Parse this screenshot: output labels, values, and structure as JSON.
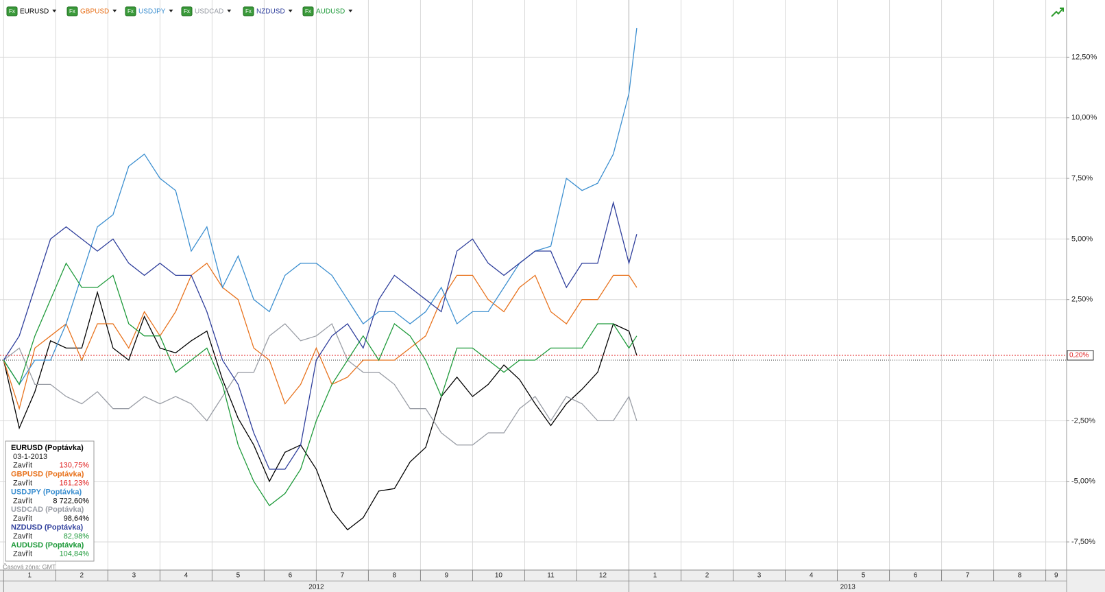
{
  "chart_data": {
    "type": "line",
    "toolbar_icon": "Fx",
    "x": [
      0,
      0.3,
      0.6,
      0.9,
      1.2,
      1.5,
      1.8,
      2.1,
      2.4,
      2.7,
      3.0,
      3.3,
      3.6,
      3.9,
      4.2,
      4.5,
      4.8,
      5.1,
      5.4,
      5.7,
      6.0,
      6.3,
      6.6,
      6.9,
      7.2,
      7.5,
      7.8,
      8.1,
      8.4,
      8.7,
      9.0,
      9.3,
      9.6,
      9.9,
      10.2,
      10.5,
      10.8,
      11.1,
      11.4,
      11.7,
      12.0,
      12.15
    ],
    "xlim": [
      -0.07,
      20.4
    ],
    "xticks": [
      {
        "value": 0,
        "label": "1"
      },
      {
        "value": 1,
        "label": "2"
      },
      {
        "value": 2,
        "label": "3"
      },
      {
        "value": 3,
        "label": "4"
      },
      {
        "value": 4,
        "label": "5"
      },
      {
        "value": 5,
        "label": "6"
      },
      {
        "value": 6,
        "label": "7"
      },
      {
        "value": 7,
        "label": "8"
      },
      {
        "value": 8,
        "label": "9"
      },
      {
        "value": 9,
        "label": "10"
      },
      {
        "value": 10,
        "label": "11"
      },
      {
        "value": 11,
        "label": "12"
      },
      {
        "value": 12,
        "label": "1"
      },
      {
        "value": 13,
        "label": "2"
      },
      {
        "value": 14,
        "label": "3"
      },
      {
        "value": 15,
        "label": "4"
      },
      {
        "value": 16,
        "label": "5"
      },
      {
        "value": 17,
        "label": "6"
      },
      {
        "value": 18,
        "label": "7"
      },
      {
        "value": 19,
        "label": "8"
      },
      {
        "value": 20,
        "label": "9"
      }
    ],
    "xgroups": [
      {
        "value": 0,
        "label": "2012"
      },
      {
        "value": 12,
        "label": "2013"
      }
    ],
    "ylim": [
      -8.66,
      14.86
    ],
    "yticks": [
      {
        "value": 12.5,
        "label": "12,50%"
      },
      {
        "value": 10,
        "label": "10,00%"
      },
      {
        "value": 7.5,
        "label": "7,50%"
      },
      {
        "value": 5,
        "label": "5,00%"
      },
      {
        "value": 2.5,
        "label": "2,50%"
      },
      {
        "value": -2.5,
        "label": "-2,50%"
      },
      {
        "value": -5,
        "label": "-5,00%"
      },
      {
        "value": -7.5,
        "label": "-7,50%"
      }
    ],
    "grid": true,
    "current_value": {
      "value": 0.2,
      "label": "0,20%",
      "color": "#e02020"
    },
    "series": [
      {
        "name": "EURUSD",
        "color": "#000000",
        "toolbar_color": "#000000",
        "values": [
          0,
          -2.8,
          -1.3,
          0.8,
          0.5,
          0.5,
          2.8,
          0.5,
          0,
          1.8,
          0.5,
          0.3,
          0.8,
          1.2,
          -0.8,
          -2.4,
          -3.5,
          -5,
          -3.8,
          -3.5,
          -4.5,
          -6.2,
          -7,
          -6.5,
          -5.4,
          -5.3,
          -4.2,
          -3.6,
          -1.5,
          -0.7,
          -1.5,
          -1,
          -0.2,
          -0.8,
          -1.8,
          -2.7,
          -1.8,
          -1.2,
          -0.5,
          1.5,
          1.2,
          0.2
        ]
      },
      {
        "name": "GBPUSD",
        "color": "#e8731e",
        "toolbar_color": "#e8731e",
        "values": [
          0,
          -2,
          0.5,
          1,
          1.5,
          0,
          1.5,
          1.5,
          0.5,
          2,
          1,
          2,
          3.5,
          4,
          3,
          2.5,
          0.5,
          0,
          -1.8,
          -1,
          0.5,
          -1,
          -0.7,
          0,
          0,
          0,
          0.5,
          1,
          2.5,
          3.5,
          3.5,
          2.5,
          2,
          3,
          3.5,
          2,
          1.5,
          2.5,
          2.5,
          3.5,
          3.5,
          3
        ]
      },
      {
        "name": "USDJPY",
        "color": "#3c8fd0",
        "toolbar_color": "#3c8fd0",
        "values": [
          0,
          -1,
          0,
          0,
          1.5,
          3.5,
          5.5,
          6,
          8,
          8.5,
          7.5,
          7,
          4.5,
          5.5,
          3,
          4.3,
          2.5,
          2,
          3.5,
          4,
          4,
          3.5,
          2.5,
          1.5,
          2,
          2,
          1.5,
          2,
          3,
          1.5,
          2,
          2,
          3,
          4,
          4.5,
          4.7,
          7.5,
          7,
          7.3,
          8.5,
          11,
          13.7
        ]
      },
      {
        "name": "USDCAD",
        "color": "#9a9ea6",
        "toolbar_color": "#9a9ea6",
        "values": [
          0,
          0.5,
          -1,
          -1,
          -1.5,
          -1.8,
          -1.3,
          -2,
          -2,
          -1.5,
          -1.8,
          -1.5,
          -1.8,
          -2.5,
          -1.5,
          -0.5,
          -0.5,
          1,
          1.5,
          0.8,
          1,
          1.5,
          0,
          -0.5,
          -0.5,
          -1,
          -2,
          -2,
          -3,
          -3.5,
          -3.5,
          -3,
          -3,
          -2,
          -1.5,
          -2.5,
          -1.5,
          -1.8,
          -2.5,
          -2.5,
          -1.5,
          -2.5
        ]
      },
      {
        "name": "NZDUSD",
        "color": "#2f3f9c",
        "toolbar_color": "#2f3f9c",
        "values": [
          0,
          1,
          3,
          5,
          5.5,
          5,
          4.5,
          5,
          4,
          3.5,
          4,
          3.5,
          3.5,
          2,
          0,
          -1,
          -3,
          -4.5,
          -4.5,
          -3.5,
          0,
          1,
          1.5,
          0.5,
          2.5,
          3.5,
          3,
          2.5,
          2,
          4.5,
          5,
          4,
          3.5,
          4,
          4.5,
          4.5,
          3,
          4,
          4,
          6.5,
          4,
          5.2
        ]
      },
      {
        "name": "AUDUSD",
        "color": "#1e9a3a",
        "toolbar_color": "#1e9a3a",
        "values": [
          0,
          -1,
          1,
          2.5,
          4,
          3,
          3,
          3.5,
          1.5,
          1,
          1,
          -0.5,
          0,
          0.5,
          -1,
          -3.5,
          -5,
          -6,
          -5.5,
          -4.5,
          -2.5,
          -1,
          0,
          1,
          0,
          1.5,
          1,
          0,
          -1.5,
          0.5,
          0.5,
          0,
          -0.5,
          0,
          0,
          0.5,
          0.5,
          0.5,
          1.5,
          1.5,
          0.5,
          1
        ]
      }
    ],
    "info_box": {
      "date": "03-1-2013",
      "close_label": "Zavřít",
      "rows": [
        {
          "title": "EURUSD (Poptávka)",
          "title_color": "#000000",
          "value": "130,75%",
          "value_color": "#e02020"
        },
        {
          "title": "GBPUSD (Poptávka)",
          "title_color": "#e8731e",
          "value": "161,23%",
          "value_color": "#e02020"
        },
        {
          "title": "USDJPY (Poptávka)",
          "title_color": "#3c8fd0",
          "value": "8 722,60%",
          "value_color": "#000000"
        },
        {
          "title": "USDCAD (Poptávka)",
          "title_color": "#9a9ea6",
          "value": "98,64%",
          "value_color": "#000000"
        },
        {
          "title": "NZDUSD (Poptávka)",
          "title_color": "#2f3f9c",
          "value": "82,98%",
          "value_color": "#1e9a3a"
        },
        {
          "title": "AUDUSD (Poptávka)",
          "title_color": "#1e9a3a",
          "value": "104,84%",
          "value_color": "#1e9a3a"
        }
      ]
    },
    "timezone": "Časová zóna: GMT"
  }
}
